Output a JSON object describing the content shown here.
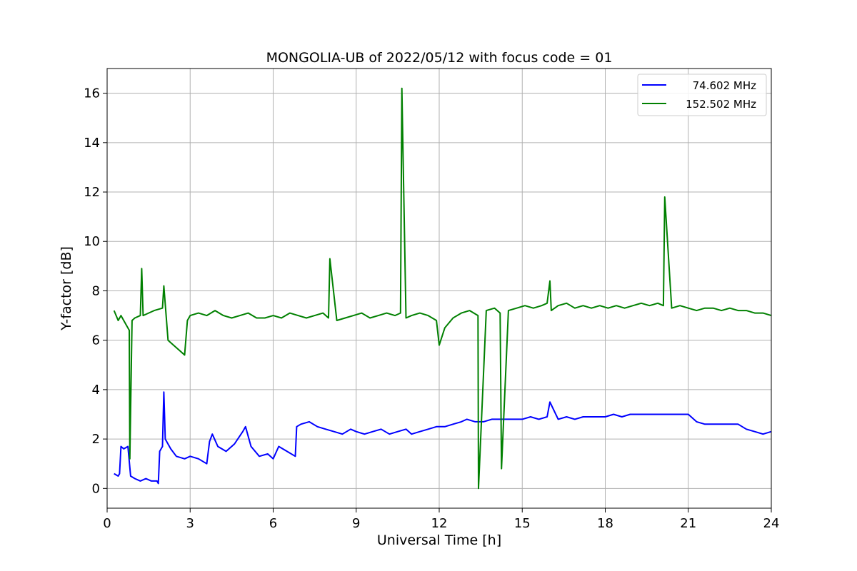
{
  "chart_data": {
    "type": "line",
    "title": "MONGOLIA-UB of 2022/05/12 with focus code = 01",
    "xlabel": "Universal Time [h]",
    "ylabel": "Y-factor [dB]",
    "xlim": [
      0,
      24
    ],
    "ylim": [
      -0.8,
      17
    ],
    "xticks": [
      0,
      3,
      6,
      9,
      12,
      15,
      18,
      21,
      24
    ],
    "yticks": [
      0,
      2,
      4,
      6,
      8,
      10,
      12,
      14,
      16
    ],
    "grid": true,
    "legend_position": "top-right",
    "series": [
      {
        "name": " 74.602 MHz",
        "color": "#0000ff",
        "x": [
          0.25,
          0.4,
          0.45,
          0.5,
          0.6,
          0.75,
          0.85,
          1.0,
          1.2,
          1.4,
          1.6,
          1.8,
          1.85,
          1.9,
          2.0,
          2.05,
          2.1,
          2.3,
          2.5,
          2.8,
          3.0,
          3.3,
          3.6,
          3.7,
          3.8,
          4.0,
          4.3,
          4.6,
          4.9,
          5.0,
          5.2,
          5.5,
          5.8,
          6.0,
          6.2,
          6.5,
          6.8,
          6.85,
          7.0,
          7.3,
          7.6,
          7.9,
          8.2,
          8.5,
          8.8,
          9.0,
          9.3,
          9.6,
          9.9,
          10.2,
          10.5,
          10.8,
          11.0,
          11.3,
          11.6,
          11.9,
          12.2,
          12.5,
          12.8,
          13.0,
          13.3,
          13.6,
          13.9,
          14.2,
          14.5,
          14.8,
          15.0,
          15.3,
          15.6,
          15.9,
          16.0,
          16.3,
          16.6,
          16.9,
          17.2,
          17.5,
          17.8,
          18.0,
          18.3,
          18.6,
          18.9,
          19.2,
          19.5,
          19.8,
          20.1,
          20.4,
          20.7,
          21.0,
          21.3,
          21.6,
          21.9,
          22.2,
          22.5,
          22.8,
          23.1,
          23.4,
          23.7,
          24.0
        ],
        "y": [
          0.6,
          0.5,
          0.6,
          1.7,
          1.6,
          1.7,
          0.5,
          0.4,
          0.3,
          0.4,
          0.3,
          0.3,
          0.2,
          1.5,
          1.7,
          3.9,
          2.0,
          1.6,
          1.3,
          1.2,
          1.3,
          1.2,
          1.0,
          1.9,
          2.2,
          1.7,
          1.5,
          1.8,
          2.3,
          2.5,
          1.7,
          1.3,
          1.4,
          1.2,
          1.7,
          1.5,
          1.3,
          2.5,
          2.6,
          2.7,
          2.5,
          2.4,
          2.3,
          2.2,
          2.4,
          2.3,
          2.2,
          2.3,
          2.4,
          2.2,
          2.3,
          2.4,
          2.2,
          2.3,
          2.4,
          2.5,
          2.5,
          2.6,
          2.7,
          2.8,
          2.7,
          2.7,
          2.8,
          2.8,
          2.8,
          2.8,
          2.8,
          2.9,
          2.8,
          2.9,
          3.5,
          2.8,
          2.9,
          2.8,
          2.9,
          2.9,
          2.9,
          2.9,
          3.0,
          2.9,
          3.0,
          3.0,
          3.0,
          3.0,
          3.0,
          3.0,
          3.0,
          3.0,
          2.7,
          2.6,
          2.6,
          2.6,
          2.6,
          2.6,
          2.4,
          2.3,
          2.2,
          2.3
        ]
      },
      {
        "name": "152.502 MHz",
        "color": "#008000",
        "x": [
          0.25,
          0.4,
          0.5,
          0.7,
          0.8,
          0.82,
          0.9,
          1.0,
          1.2,
          1.25,
          1.3,
          1.5,
          1.7,
          2.0,
          2.05,
          2.2,
          2.4,
          2.6,
          2.8,
          2.9,
          3.0,
          3.3,
          3.6,
          3.9,
          4.2,
          4.5,
          4.8,
          5.1,
          5.4,
          5.7,
          6.0,
          6.3,
          6.6,
          6.9,
          7.2,
          7.5,
          7.8,
          8.0,
          8.05,
          8.3,
          8.6,
          8.9,
          9.2,
          9.5,
          9.8,
          10.1,
          10.4,
          10.6,
          10.65,
          10.8,
          11.0,
          11.3,
          11.6,
          11.9,
          12.0,
          12.2,
          12.5,
          12.8,
          13.1,
          13.4,
          13.42,
          13.7,
          14.0,
          14.2,
          14.25,
          14.5,
          14.8,
          15.1,
          15.4,
          15.7,
          15.9,
          16.0,
          16.05,
          16.3,
          16.6,
          16.9,
          17.2,
          17.5,
          17.8,
          18.1,
          18.4,
          18.7,
          19.0,
          19.3,
          19.6,
          19.9,
          20.1,
          20.15,
          20.4,
          20.7,
          21.0,
          21.3,
          21.6,
          21.9,
          22.2,
          22.5,
          22.8,
          23.1,
          23.4,
          23.7,
          24.0
        ],
        "y": [
          7.2,
          6.8,
          7.0,
          6.6,
          6.4,
          1.2,
          6.8,
          6.9,
          7.0,
          8.9,
          7.0,
          7.1,
          7.2,
          7.3,
          8.2,
          6.0,
          5.8,
          5.6,
          5.4,
          6.8,
          7.0,
          7.1,
          7.0,
          7.2,
          7.0,
          6.9,
          7.0,
          7.1,
          6.9,
          6.9,
          7.0,
          6.9,
          7.1,
          7.0,
          6.9,
          7.0,
          7.1,
          6.9,
          9.3,
          6.8,
          6.9,
          7.0,
          7.1,
          6.9,
          7.0,
          7.1,
          7.0,
          7.1,
          16.2,
          6.9,
          7.0,
          7.1,
          7.0,
          6.8,
          5.8,
          6.5,
          6.9,
          7.1,
          7.2,
          7.0,
          0.0,
          7.2,
          7.3,
          7.1,
          0.8,
          7.2,
          7.3,
          7.4,
          7.3,
          7.4,
          7.5,
          8.4,
          7.2,
          7.4,
          7.5,
          7.3,
          7.4,
          7.3,
          7.4,
          7.3,
          7.4,
          7.3,
          7.4,
          7.5,
          7.4,
          7.5,
          7.4,
          11.8,
          7.3,
          7.4,
          7.3,
          7.2,
          7.3,
          7.3,
          7.2,
          7.3,
          7.2,
          7.2,
          7.1,
          7.1,
          7.0
        ]
      }
    ]
  }
}
